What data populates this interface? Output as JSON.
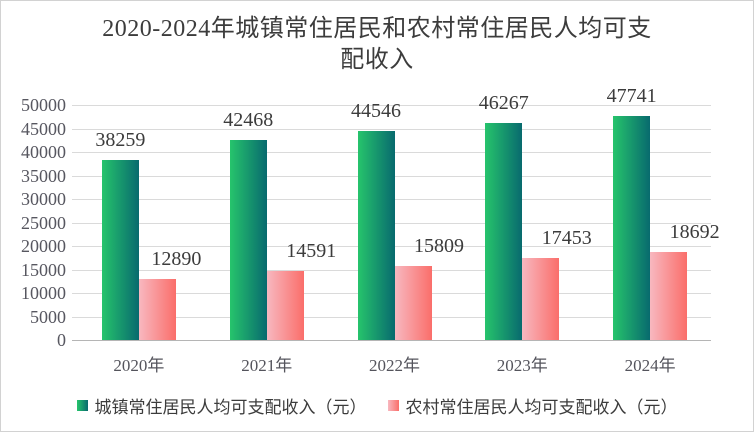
{
  "chart_data": {
    "type": "bar",
    "title": "2020-2024年城镇常住居民和农村常住居民人均可支配收入",
    "categories": [
      "2020年",
      "2021年",
      "2022年",
      "2023年",
      "2024年"
    ],
    "series": [
      {
        "name": "城镇常住居民人均可支配收入（元）",
        "values": [
          38259,
          42468,
          44546,
          46267,
          47741
        ],
        "color_from": "#26c46c",
        "color_to": "#086a6e"
      },
      {
        "name": "农村常住居民人均可支配收入（元）",
        "values": [
          12890,
          14591,
          15809,
          17453,
          18692
        ],
        "color_from": "#f8b8c0",
        "color_to": "#fa6e6a"
      }
    ],
    "ylim": [
      0,
      50000
    ],
    "ytick_step": 5000,
    "yticks": [
      0,
      5000,
      10000,
      15000,
      20000,
      25000,
      30000,
      35000,
      40000,
      45000,
      50000
    ],
    "grid": true,
    "legend_position": "bottom",
    "colors": {
      "gridline": "#dadada",
      "axis_line": "#b5b5b5",
      "axis_text": "#575760",
      "label_text": "#3c3c3c"
    }
  }
}
